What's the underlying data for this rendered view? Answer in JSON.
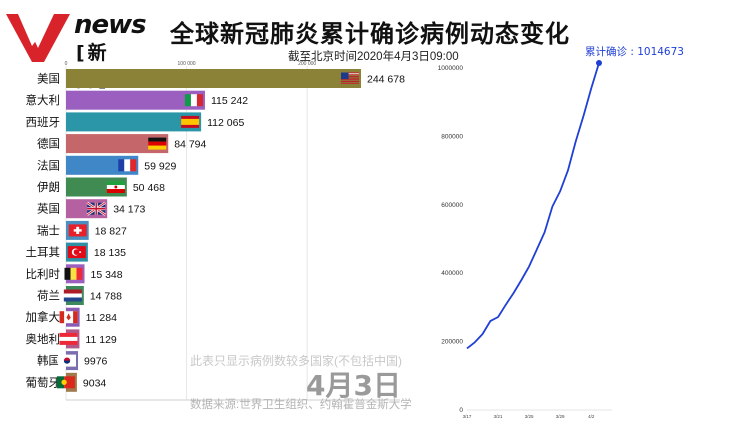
{
  "header": {
    "logo_word": "news",
    "logo_sub": "[新 闻]",
    "title": "全球新冠肺炎累计确诊病例动态变化",
    "subtitle": "截至北京时间2020年4月3日09:00"
  },
  "notes": {
    "countries_note": "此表只显示病例数较多国家(不包括中国)",
    "date": "4月3日",
    "source": "数据来源:世界卫生组织、约翰霍普金斯大学"
  },
  "chart_data": [
    {
      "type": "bar",
      "orientation": "horizontal",
      "categories": [
        "美国",
        "意大利",
        "西班牙",
        "德国",
        "法国",
        "伊朗",
        "英国",
        "瑞士",
        "土耳其",
        "比利时",
        "荷兰",
        "加拿大",
        "奥地利",
        "韩国",
        "葡萄牙"
      ],
      "values": [
        244678,
        115242,
        112065,
        84794,
        59929,
        50468,
        34173,
        18827,
        18135,
        15348,
        14788,
        11284,
        11129,
        9976,
        9034
      ],
      "value_labels": [
        "244 678",
        "115 242",
        "112 065",
        "84 794",
        "59 929",
        "50 468",
        "34 173",
        "18 827",
        "18 135",
        "15 348",
        "14 788",
        "11 284",
        "11 129",
        "9976",
        "9034"
      ],
      "colors": [
        "#8b8237",
        "#9b5fc0",
        "#2b96a8",
        "#c4666a",
        "#4087c8",
        "#3f8b52",
        "#b561a1",
        "#4a8fbf",
        "#2f8fa3",
        "#9b5fc0",
        "#3c8a5c",
        "#8a5cb3",
        "#b05a8c",
        "#7a6db0",
        "#a07a4c"
      ],
      "flags": [
        "us-flag",
        "italy-flag",
        "spain-flag",
        "germany-flag",
        "france-flag",
        "iran-flag",
        "uk-flag",
        "switzerland-flag",
        "turkey-flag",
        "belgium-flag",
        "netherlands-flag",
        "canada-flag",
        "austria-flag",
        "korea-flag",
        "portugal-flag"
      ],
      "xaxis_ticks": [
        0,
        100000,
        200000
      ],
      "xaxis_tick_labels": [
        "0",
        "100 000",
        "200 000"
      ],
      "xlim": [
        0,
        250000
      ]
    },
    {
      "type": "line",
      "x_tick_labels": [
        "3/17",
        "3/21",
        "3/25",
        "3/29",
        "4/2"
      ],
      "yticks": [
        0,
        200000,
        400000,
        600000,
        800000,
        1000000
      ],
      "ytick_labels": [
        "0",
        "200000",
        "400000",
        "600000",
        "800000",
        "1000000"
      ],
      "ylim": [
        0,
        1020000
      ],
      "x": [
        "3/17",
        "3/18",
        "3/19",
        "3/20",
        "3/21",
        "3/22",
        "3/23",
        "3/24",
        "3/25",
        "3/26",
        "3/27",
        "3/28",
        "3/29",
        "3/30",
        "3/31",
        "4/1",
        "4/2",
        "4/3"
      ],
      "values": [
        180000,
        198000,
        222000,
        260000,
        272000,
        308000,
        342000,
        380000,
        420000,
        470000,
        520000,
        595000,
        640000,
        700000,
        785000,
        860000,
        940000,
        1014673
      ],
      "line_color": "#1f3fd6",
      "end_label": "累计确诊 : 1014673"
    }
  ]
}
